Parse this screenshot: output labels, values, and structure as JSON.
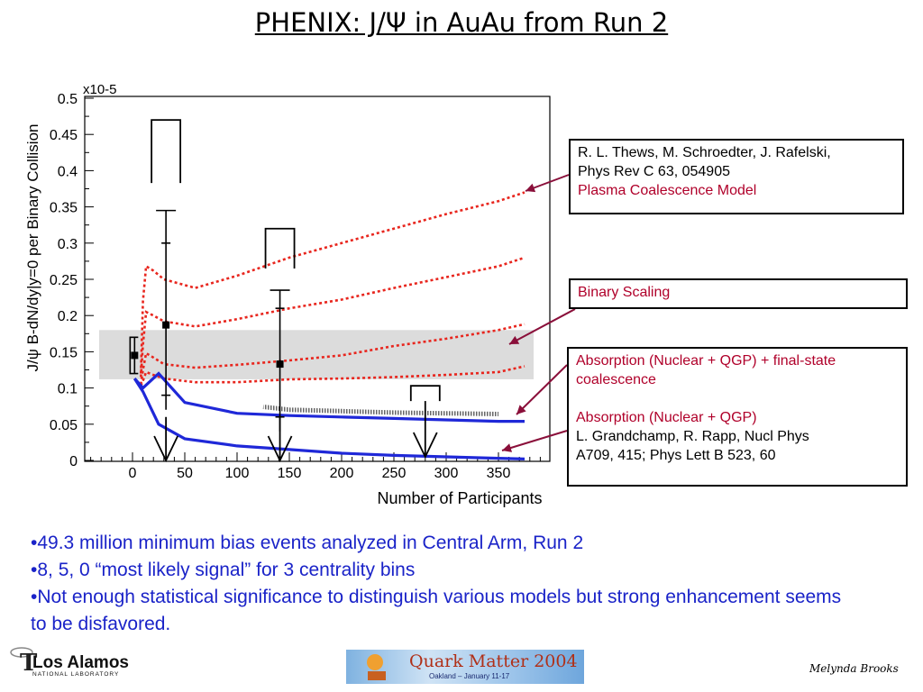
{
  "slide": {
    "title": "PHENIX:  J/Ψ in AuAu from Run 2"
  },
  "chart_data": {
    "type": "scatter",
    "xlabel": "Number of Participants",
    "ylabel": "J/ψ  B-dN/dy|y=0 per Binary Collision",
    "y_multiplier_label": "x10-5",
    "xlim": [
      -50,
      400
    ],
    "ylim": [
      0,
      0.5
    ],
    "x_ticks": [
      "0",
      "50",
      "100",
      "150",
      "200",
      "250",
      "300",
      "350"
    ],
    "y_ticks": [
      "0",
      "0.05",
      "0.1",
      "0.15",
      "0.2",
      "0.25",
      "0.3",
      "0.35",
      "0.4",
      "0.45",
      "0.5"
    ],
    "binary_scaling_band": [
      0.112,
      0.18
    ],
    "data_points": [
      {
        "x": 2,
        "y": 0.145,
        "stat_low": 0.13,
        "stat_high": 0.16,
        "sys_low": 0.12,
        "sys_high": 0.17
      },
      {
        "x": 32,
        "y": 0.187,
        "stat_low": 0.09,
        "stat_high": 0.3,
        "sys_low": 0.07,
        "sys_high": 0.345
      },
      {
        "x": 141,
        "y": 0.133,
        "stat_low": 0.06,
        "stat_high": 0.21,
        "sys_low": 0.04,
        "sys_high": 0.235
      }
    ],
    "upper_limits": [
      {
        "x": 32,
        "box_top": 0.47,
        "box_bottom": 0.383,
        "arrow_tip": 0
      },
      {
        "x": 141,
        "box_top": 0.32,
        "box_bottom": 0.265,
        "arrow_tip": 0
      },
      {
        "x": 280,
        "box_top": 0.103,
        "box_bottom": 0.082,
        "arrow_tip": 0.005
      }
    ],
    "series": [
      {
        "style": "red-dotted",
        "x": [
          8,
          10,
          13,
          20,
          30,
          60,
          100,
          150,
          200,
          250,
          300,
          350,
          375
        ],
        "y": [
          0.12,
          0.22,
          0.268,
          0.262,
          0.25,
          0.238,
          0.255,
          0.28,
          0.3,
          0.32,
          0.34,
          0.358,
          0.37
        ]
      },
      {
        "style": "red-dotted",
        "x": [
          8,
          10,
          13,
          20,
          30,
          60,
          100,
          150,
          200,
          250,
          300,
          350,
          375
        ],
        "y": [
          0.115,
          0.16,
          0.205,
          0.2,
          0.192,
          0.185,
          0.195,
          0.21,
          0.222,
          0.238,
          0.253,
          0.268,
          0.28
        ]
      },
      {
        "style": "red-dotted",
        "x": [
          8,
          10,
          13,
          20,
          30,
          60,
          100,
          150,
          200,
          250,
          300,
          350,
          375
        ],
        "y": [
          0.105,
          0.125,
          0.148,
          0.142,
          0.133,
          0.128,
          0.132,
          0.138,
          0.145,
          0.158,
          0.168,
          0.18,
          0.188
        ]
      },
      {
        "style": "red-dotted",
        "x": [
          8,
          10,
          13,
          20,
          30,
          60,
          100,
          150,
          200,
          250,
          300,
          350,
          375
        ],
        "y": [
          0.103,
          0.11,
          0.122,
          0.118,
          0.113,
          0.108,
          0.108,
          0.112,
          0.113,
          0.115,
          0.118,
          0.122,
          0.13
        ]
      },
      {
        "style": "blue-solid",
        "x": [
          2,
          10,
          25,
          50,
          100,
          150,
          200,
          250,
          300,
          350,
          375
        ],
        "y": [
          0.113,
          0.1,
          0.12,
          0.08,
          0.065,
          0.062,
          0.06,
          0.058,
          0.056,
          0.054,
          0.054
        ]
      },
      {
        "style": "blue-solid",
        "x": [
          2,
          10,
          25,
          50,
          100,
          150,
          200,
          250,
          300,
          350,
          375
        ],
        "y": [
          0.113,
          0.095,
          0.05,
          0.03,
          0.02,
          0.015,
          0.01,
          0.007,
          0.005,
          0.003,
          0.002
        ]
      },
      {
        "style": "gray-hatched",
        "x": [
          125,
          150,
          200,
          250,
          300,
          350
        ],
        "y": [
          0.074,
          0.07,
          0.068,
          0.066,
          0.065,
          0.064
        ]
      }
    ],
    "annotations": [
      {
        "id": "thews",
        "lines": [
          "R. L. Thews, M. Schroedter, J. Rafelski,",
          "Phys Rev C 63, 054905"
        ],
        "model": "Plasma Coalescence Model"
      },
      {
        "id": "binary",
        "model": "Binary Scaling"
      },
      {
        "id": "grandchamp",
        "model_1": "Absorption (Nuclear + QGP) + final-state coalescence",
        "model_2": "Absorption (Nuclear + QGP)",
        "lines": [
          "L. Grandchamp, R. Rapp, Nucl Phys",
          "A709, 415; Phys Lett B 523, 60"
        ]
      }
    ],
    "colors": {
      "red_model": "#e8261e",
      "blue_model": "#1f28d8",
      "band": "#dcdcdc",
      "annotation_red": "#b0002a",
      "bullets": "#1a23c8"
    }
  },
  "boxes": {
    "thews_line1": "R. L. Thews, M. Schroedter, J. Rafelski,",
    "thews_line2": "Phys Rev C 63, 054905",
    "thews_model": "Plasma Coalescence Model",
    "binary_label": "Binary Scaling",
    "grandchamp_model1": "Absorption (Nuclear + QGP) + final-state coalescence",
    "grandchamp_model2": "Absorption (Nuclear + QGP)",
    "grandchamp_line1": "L. Grandchamp, R. Rapp, Nucl Phys",
    "grandchamp_line2": "A709, 415; Phys Lett B 523, 60"
  },
  "bullets": [
    "•49.3 million minimum bias events analyzed in Central Arm, Run 2",
    "•8, 5, 0 “most likely signal” for 3 centrality bins",
    "•Not enough statistical significance to distinguish various models but strong enhancement seems to be disfavored."
  ],
  "footer": {
    "lanl_top": "Los Alamos",
    "lanl_bottom": "NATIONAL LABORATORY",
    "qm_title": "Quark Matter 2004",
    "qm_sub": "Oakland – January 11-17",
    "author": "Melynda Brooks"
  }
}
